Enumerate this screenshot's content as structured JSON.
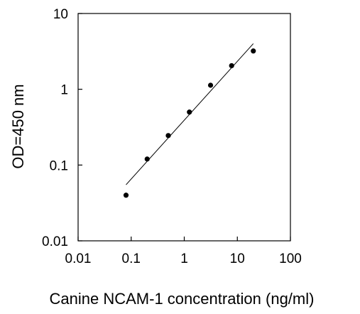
{
  "chart_data": {
    "type": "scatter",
    "xlabel": "Canine NCAM-1 concentration (ng/ml)",
    "ylabel": "OD=450 nm",
    "x_scale": "log",
    "y_scale": "log",
    "xlim": [
      0.01,
      100
    ],
    "ylim": [
      0.01,
      10
    ],
    "x_ticks": [
      0.01,
      0.1,
      1,
      10,
      100
    ],
    "x_tick_labels": [
      "0.01",
      "0.1",
      "1",
      "10",
      "100"
    ],
    "y_ticks": [
      0.01,
      0.1,
      1,
      10
    ],
    "y_tick_labels": [
      "0.01",
      "0.1",
      "1",
      "10"
    ],
    "grid": false,
    "legend": "none",
    "series": [
      {
        "kind": "points",
        "x": [
          0.08,
          0.2,
          0.5,
          1.25,
          3.13,
          7.8,
          20
        ],
        "y": [
          0.04,
          0.12,
          0.245,
          0.5,
          1.13,
          2.05,
          3.2
        ]
      },
      {
        "kind": "fit-line",
        "x": [
          0.08,
          20
        ],
        "y": [
          0.055,
          4.0
        ]
      }
    ],
    "marker_color": "#000000",
    "line_color": "#000000"
  }
}
